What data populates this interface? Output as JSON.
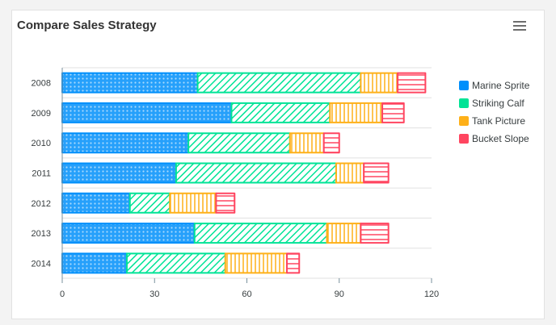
{
  "header": {
    "title": "Compare Sales Strategy"
  },
  "chart_data": {
    "type": "bar",
    "orientation": "horizontal",
    "stacked": true,
    "title": "Compare Sales Strategy",
    "categories": [
      "2008",
      "2009",
      "2010",
      "2011",
      "2012",
      "2013",
      "2014"
    ],
    "series": [
      {
        "name": "Marine Sprite",
        "color": "#008ffb",
        "pattern": "circles",
        "values": [
          44,
          55,
          41,
          37,
          22,
          43,
          21
        ]
      },
      {
        "name": "Striking Calf",
        "color": "#00e396",
        "pattern": "diagonal-lines",
        "values": [
          53,
          32,
          33,
          52,
          13,
          43,
          32
        ]
      },
      {
        "name": "Tank Picture",
        "color": "#feb019",
        "pattern": "vertical-lines",
        "values": [
          12,
          17,
          11,
          9,
          15,
          11,
          20
        ]
      },
      {
        "name": "Bucket Slope",
        "color": "#ff4560",
        "pattern": "horizontal-lines",
        "values": [
          9,
          7,
          5,
          8,
          6,
          9,
          4
        ]
      }
    ],
    "xlim": [
      0,
      120
    ],
    "xticks": [
      "0",
      "30",
      "60",
      "90",
      "120"
    ],
    "legend_position": "right",
    "grid": "horizontal"
  }
}
